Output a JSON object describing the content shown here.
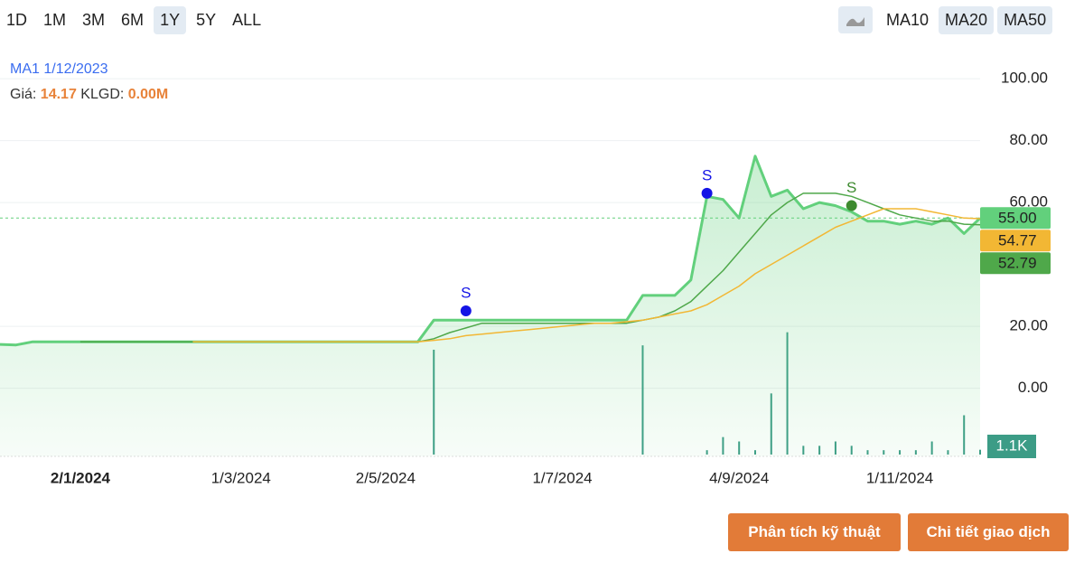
{
  "toolbar": {
    "ranges": [
      "1D",
      "1M",
      "3M",
      "6M",
      "1Y",
      "5Y",
      "ALL"
    ],
    "active_range": "1Y",
    "indicators": [
      "MA10",
      "MA20",
      "MA50"
    ],
    "active_indicators": [
      "MA20",
      "MA50"
    ]
  },
  "info": {
    "series": "MA1",
    "date": "1/12/2023",
    "price_label": "Giá:",
    "price": 14.17,
    "volume_label": "KLGD:",
    "volume": "0.00M"
  },
  "actions": [
    "Phân tích kỹ thuật",
    "Chi tiết giao dịch"
  ],
  "chart_data": {
    "type": "line",
    "categories": [
      null,
      null,
      null,
      null,
      null,
      "2/1/2024",
      null,
      null,
      null,
      null,
      null,
      null,
      null,
      null,
      null,
      "1/3/2024",
      null,
      null,
      null,
      null,
      null,
      null,
      null,
      null,
      "2/5/2024",
      null,
      null,
      null,
      null,
      null,
      null,
      null,
      null,
      null,
      null,
      "1/7/2024",
      null,
      null,
      null,
      null,
      null,
      null,
      null,
      null,
      null,
      null,
      "4/9/2024",
      null,
      null,
      null,
      null,
      null,
      null,
      null,
      null,
      null,
      "1/11/2024",
      null,
      null,
      null,
      null,
      null
    ],
    "series": [
      {
        "name": "Price",
        "color": "#62d07c",
        "last_label": "55.00",
        "values": [
          14.17,
          14,
          15,
          15,
          15,
          15,
          15,
          15,
          15,
          15,
          15,
          15,
          15,
          15,
          15,
          15,
          15,
          15,
          15,
          15,
          15,
          15,
          15,
          15,
          15,
          15,
          15,
          22,
          22,
          22,
          22,
          22,
          22,
          22,
          22,
          22,
          22,
          22,
          22,
          22,
          30,
          30,
          30,
          35,
          62,
          61,
          55,
          75,
          62,
          64,
          58,
          60,
          59,
          57,
          54,
          54,
          53,
          54,
          53,
          55,
          50,
          55
        ]
      },
      {
        "name": "MA20",
        "color": "#4fa84a",
        "last_label": "52.79",
        "values": [
          null,
          null,
          null,
          null,
          null,
          15,
          15,
          15,
          15,
          15,
          15,
          15,
          15,
          15,
          15,
          15,
          15,
          15,
          15,
          15,
          15,
          15,
          15,
          15,
          15,
          15,
          15,
          16,
          18,
          19.5,
          21,
          21,
          21,
          21,
          21,
          21,
          21,
          21,
          21,
          21,
          22,
          23,
          25,
          28,
          33,
          38,
          44,
          50,
          56,
          60,
          63,
          63,
          63,
          62,
          60,
          58,
          56,
          55,
          54,
          54,
          53,
          52.79
        ]
      },
      {
        "name": "MA50",
        "color": "#f2b734",
        "last_label": "54.77",
        "values": [
          null,
          null,
          null,
          null,
          null,
          null,
          null,
          null,
          null,
          null,
          null,
          null,
          15,
          15,
          15,
          15,
          15,
          15,
          15,
          15,
          15,
          15,
          15,
          15,
          15,
          15,
          15,
          15.5,
          16,
          17,
          17.5,
          18,
          18.5,
          19,
          19.5,
          20,
          20.5,
          21,
          21,
          21.5,
          22,
          23,
          24,
          25,
          27,
          30,
          33,
          37,
          40,
          43,
          46,
          49,
          52,
          54,
          56,
          58,
          58,
          58,
          57,
          56,
          55,
          54.77
        ]
      },
      {
        "name": "Volume",
        "type": "bar",
        "axis": "y2",
        "color": "#3c9c86",
        "last_label": "1.1K",
        "values": [
          0,
          0,
          0,
          0,
          0,
          0,
          0,
          0,
          0,
          0,
          0,
          0,
          0,
          0,
          0,
          0,
          0,
          0,
          0,
          0,
          0,
          0,
          0,
          0,
          0,
          0,
          0,
          24,
          0,
          0,
          0,
          0,
          0,
          0,
          0,
          0,
          0,
          0,
          0,
          0,
          25,
          0,
          0,
          0,
          1,
          4,
          3,
          1,
          14,
          28,
          2,
          2,
          3,
          2,
          1,
          1,
          1,
          1,
          3,
          1,
          9,
          1.1
        ]
      }
    ],
    "ylim": [
      -22,
      105
    ],
    "yticks": [
      {
        "value": 100,
        "label": "100.00"
      },
      {
        "value": 80,
        "label": "80.00"
      },
      {
        "value": 60,
        "label": "60.00"
      },
      {
        "value": 20,
        "label": "20.00"
      },
      {
        "value": 0,
        "label": "0.00"
      }
    ],
    "y2lim": [
      0,
      90
    ],
    "grid": true,
    "annotations": [
      {
        "text": "S",
        "at": 29,
        "value": 25,
        "color": "#1414e6"
      },
      {
        "text": "S",
        "at": 44,
        "value": 63,
        "color": "#1414e6"
      },
      {
        "text": "S",
        "at": 53,
        "value": 59,
        "color": "#3d8a2f"
      }
    ]
  }
}
